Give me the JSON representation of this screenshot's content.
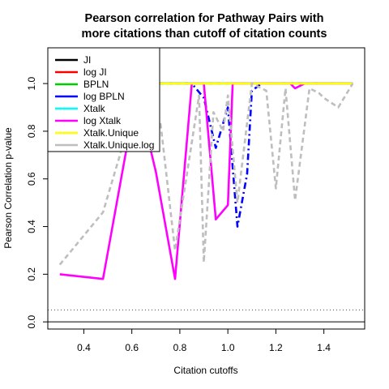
{
  "chart_data": {
    "type": "line",
    "title_line1": "Pearson correlation for Pathway Pairs with",
    "title_line2": "more citations than cutoff of citation counts",
    "xlabel": "Citation cutoffs",
    "ylabel": "Pearson Correlation p-value",
    "xlim": [
      0.25,
      1.57
    ],
    "ylim": [
      -0.03,
      1.15
    ],
    "xticks": [
      0.4,
      0.6,
      0.8,
      1.0,
      1.2,
      1.4
    ],
    "xtick_labels": [
      "0.4",
      "0.6",
      "0.8",
      "1.0",
      "1.2",
      "1.4"
    ],
    "yticks": [
      0.0,
      0.2,
      0.4,
      0.6,
      0.8,
      1.0
    ],
    "ytick_labels": [
      "0.0",
      "0.2",
      "0.4",
      "0.6",
      "0.8",
      "1.0"
    ],
    "reference_lines": [
      {
        "y": 0.05,
        "color": "#555555",
        "style": "dotted"
      },
      {
        "y": 0.0,
        "color": "#000000",
        "style": "solid"
      }
    ],
    "legend_position": "top-left",
    "series": [
      {
        "name": "JI",
        "color": "#000000",
        "dash": "solid",
        "points": [
          [
            0.7,
            1.0
          ],
          [
            1.52,
            1.0
          ]
        ]
      },
      {
        "name": "log JI",
        "color": "#ff0000",
        "dash": "solid",
        "points": [
          [
            0.7,
            1.0
          ],
          [
            1.52,
            1.0
          ]
        ]
      },
      {
        "name": "BPLN",
        "color": "#00cd00",
        "dash": "solid",
        "points": [
          [
            0.7,
            1.0
          ],
          [
            1.52,
            1.0
          ]
        ]
      },
      {
        "name": "log BPLN",
        "color": "#0000ff",
        "dash": "dashdot",
        "points": [
          [
            0.7,
            1.0
          ],
          [
            0.85,
            1.0
          ],
          [
            0.9,
            0.94
          ],
          [
            0.95,
            0.73
          ],
          [
            1.0,
            0.9
          ],
          [
            1.04,
            0.4
          ],
          [
            1.08,
            0.62
          ],
          [
            1.1,
            0.97
          ],
          [
            1.14,
            1.0
          ],
          [
            1.52,
            1.0
          ]
        ]
      },
      {
        "name": "Xtalk",
        "color": "#00ffff",
        "dash": "dashed",
        "points": [
          [
            0.7,
            1.0
          ],
          [
            1.52,
            1.0
          ]
        ]
      },
      {
        "name": "log Xtalk",
        "color": "#ff00ff",
        "dash": "solid",
        "points": [
          [
            0.3,
            0.2
          ],
          [
            0.48,
            0.18
          ],
          [
            0.6,
            0.85
          ],
          [
            0.66,
            0.8
          ],
          [
            0.7,
            0.63
          ],
          [
            0.78,
            0.18
          ],
          [
            0.85,
            1.0
          ],
          [
            0.9,
            1.0
          ],
          [
            0.95,
            0.43
          ],
          [
            1.0,
            0.49
          ],
          [
            1.02,
            1.0
          ],
          [
            1.26,
            1.0
          ],
          [
            1.28,
            0.98
          ],
          [
            1.32,
            1.0
          ],
          [
            1.52,
            1.0
          ]
        ]
      },
      {
        "name": "Xtalk.Unique",
        "color": "#ffff00",
        "dash": "solid",
        "points": [
          [
            0.7,
            1.0
          ],
          [
            1.52,
            1.0
          ]
        ]
      },
      {
        "name": "Xtalk.Unique.log",
        "color": "#bebebe",
        "dash": "dashed",
        "points": [
          [
            0.3,
            0.24
          ],
          [
            0.48,
            0.46
          ],
          [
            0.58,
            0.8
          ],
          [
            0.72,
            0.83
          ],
          [
            0.78,
            0.3
          ],
          [
            0.84,
            0.69
          ],
          [
            0.88,
            0.95
          ],
          [
            0.9,
            0.25
          ],
          [
            0.94,
            0.88
          ],
          [
            0.98,
            0.8
          ],
          [
            1.0,
            0.95
          ],
          [
            1.04,
            0.5
          ],
          [
            1.1,
            1.0
          ],
          [
            1.16,
            0.97
          ],
          [
            1.2,
            0.56
          ],
          [
            1.24,
            0.98
          ],
          [
            1.28,
            0.51
          ],
          [
            1.34,
            0.98
          ],
          [
            1.38,
            0.96
          ],
          [
            1.4,
            0.94
          ],
          [
            1.46,
            0.9
          ],
          [
            1.52,
            1.0
          ]
        ]
      }
    ]
  }
}
